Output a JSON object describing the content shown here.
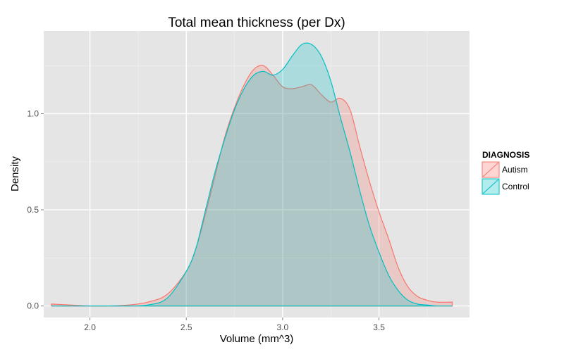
{
  "chart_data": {
    "type": "area",
    "title": "Total mean thickness (per Dx)",
    "xlabel": "Volume (mm^3)",
    "ylabel": "Density",
    "xlim": [
      1.76,
      3.97
    ],
    "ylim": [
      -0.06,
      1.43
    ],
    "x_ticks": [
      2.0,
      2.5,
      3.0,
      3.5
    ],
    "x_tick_labels": [
      "2.0",
      "2.5",
      "3.0",
      "3.5"
    ],
    "y_ticks": [
      0.0,
      0.5,
      1.0
    ],
    "y_tick_labels": [
      "0.0",
      "0.5",
      "1.0"
    ],
    "grid": true,
    "legend_position": "right",
    "legend_title": "DIAGNOSIS",
    "series": [
      {
        "name": "Autism",
        "color": "#F8766D",
        "x": [
          1.8,
          1.9,
          2.0,
          2.1,
          2.2,
          2.3,
          2.4,
          2.5,
          2.55,
          2.6,
          2.65,
          2.7,
          2.75,
          2.8,
          2.85,
          2.9,
          2.95,
          3.0,
          3.05,
          3.1,
          3.15,
          3.2,
          3.25,
          3.3,
          3.35,
          3.4,
          3.45,
          3.5,
          3.55,
          3.6,
          3.65,
          3.7,
          3.75,
          3.8,
          3.88
        ],
        "y": [
          0.01,
          0.005,
          0.0,
          0.0,
          0.005,
          0.02,
          0.06,
          0.18,
          0.3,
          0.48,
          0.68,
          0.88,
          1.03,
          1.15,
          1.23,
          1.25,
          1.2,
          1.14,
          1.13,
          1.14,
          1.15,
          1.1,
          1.06,
          1.08,
          1.02,
          0.83,
          0.65,
          0.49,
          0.35,
          0.2,
          0.1,
          0.05,
          0.03,
          0.02,
          0.02
        ]
      },
      {
        "name": "Control",
        "color": "#00BFC4",
        "x": [
          1.8,
          1.9,
          2.0,
          2.1,
          2.2,
          2.3,
          2.4,
          2.5,
          2.55,
          2.6,
          2.65,
          2.7,
          2.75,
          2.8,
          2.85,
          2.9,
          2.95,
          3.0,
          3.05,
          3.1,
          3.15,
          3.2,
          3.25,
          3.3,
          3.35,
          3.4,
          3.45,
          3.5,
          3.55,
          3.6,
          3.65,
          3.7,
          3.75,
          3.8,
          3.88
        ],
        "y": [
          0.0,
          0.0,
          0.0,
          0.0,
          0.0,
          0.005,
          0.04,
          0.18,
          0.3,
          0.5,
          0.7,
          0.87,
          1.02,
          1.13,
          1.2,
          1.22,
          1.2,
          1.23,
          1.3,
          1.36,
          1.36,
          1.3,
          1.17,
          0.98,
          0.8,
          0.6,
          0.42,
          0.28,
          0.16,
          0.08,
          0.03,
          0.01,
          0.005,
          0.0,
          0.0
        ]
      }
    ]
  }
}
